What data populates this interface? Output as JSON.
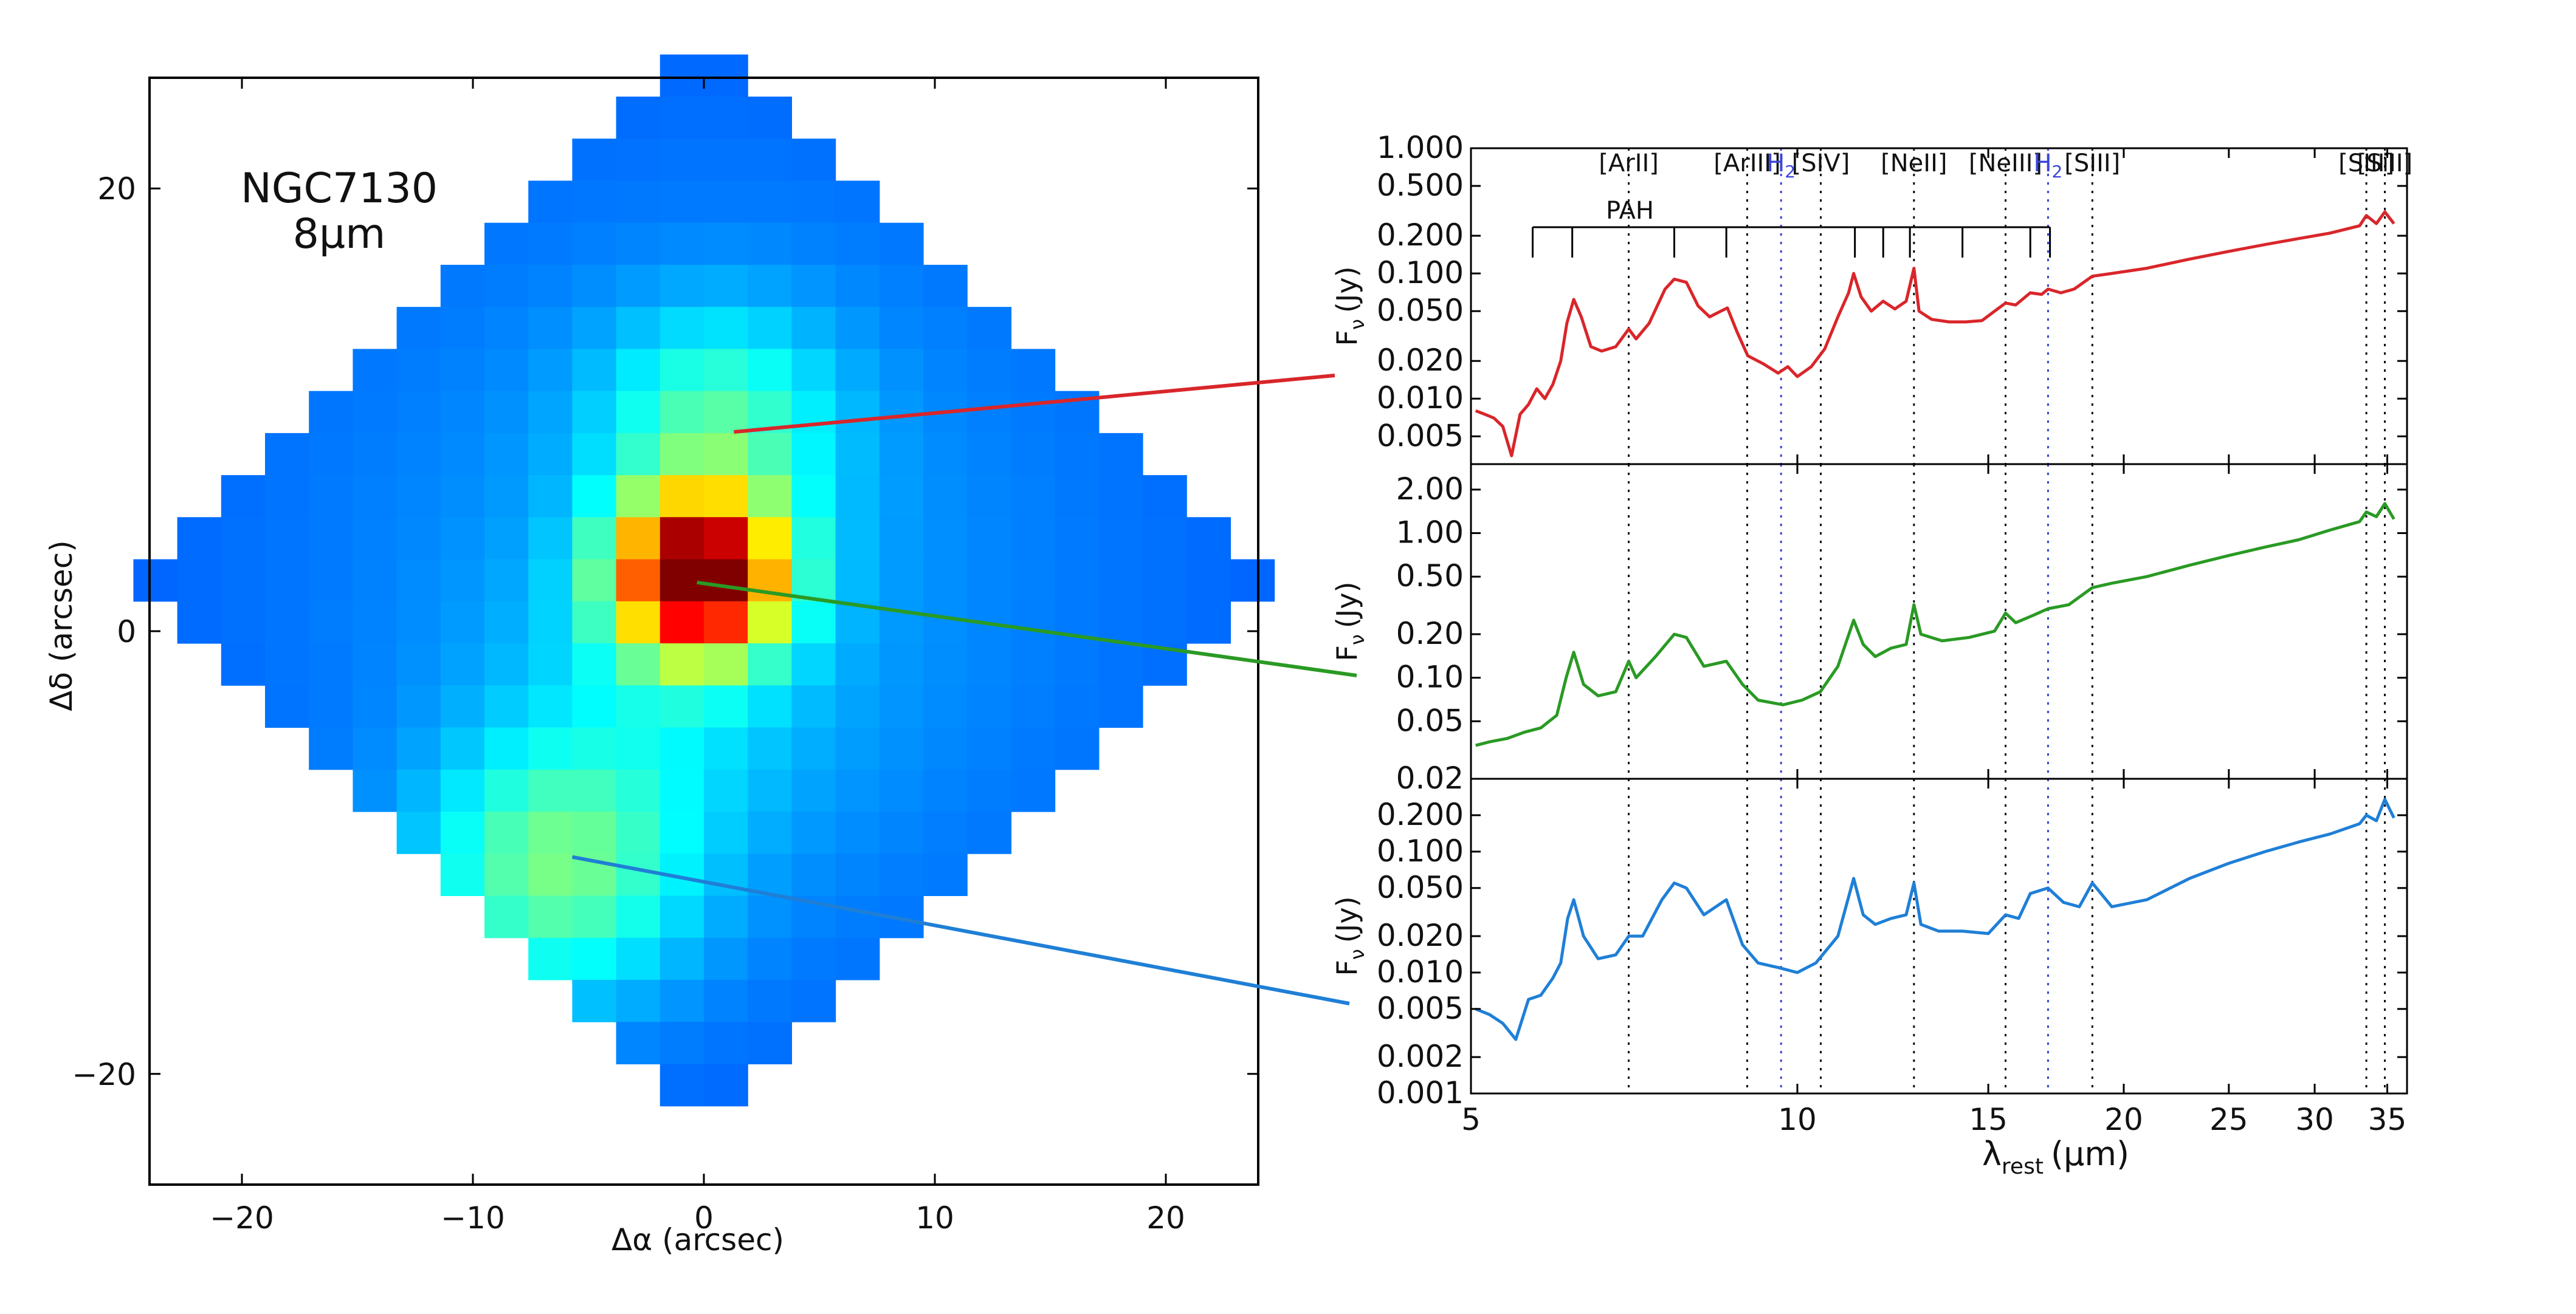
{
  "chart_data": [
    {
      "type": "heatmap",
      "title_lines": [
        "NGC7130",
        "8µm"
      ],
      "xlabel": "Δα (arcsec)",
      "ylabel": "Δδ (arcsec)",
      "xlim": [
        -24,
        24
      ],
      "ylim": [
        -25,
        25
      ],
      "x_ticks": [
        -20,
        -10,
        0,
        10,
        20
      ],
      "y_ticks": [
        20,
        0,
        -20
      ],
      "x_tick_labels": [
        "−20",
        "−10",
        "0",
        "10",
        "20"
      ],
      "y_tick_labels": [
        "20",
        "0",
        "−20"
      ],
      "pixel_size_arcsec": 1.9,
      "colormap": "jet",
      "grid_center": [
        0,
        2.3
      ],
      "diamond_half_widths": [
        1,
        2,
        3,
        4,
        5,
        6,
        7,
        8,
        9,
        10,
        11,
        12,
        13,
        12,
        11,
        10,
        9,
        8,
        7,
        6,
        5,
        4,
        3,
        2,
        1
      ],
      "emission": {
        "background": 0.05,
        "falloff": 0.028,
        "components": [
          {
            "x": -0.2,
            "y": 2.5,
            "amp": 0.95,
            "sigma": 2.5
          },
          {
            "x": 0.6,
            "y": 9.5,
            "amp": 0.22,
            "sigma": 3.5
          },
          {
            "x": -6.5,
            "y": -11.0,
            "amp": 0.28,
            "sigma": 4.0
          },
          {
            "x": -2.0,
            "y": -3.5,
            "amp": 0.08,
            "sigma": 5.0
          }
        ]
      },
      "markers": [
        {
          "name": "north",
          "color": "#d9262a",
          "from": [
            1.3,
            9.0
          ]
        },
        {
          "name": "nucleus",
          "color": "#2a9a24",
          "from": [
            -0.3,
            2.2
          ]
        },
        {
          "name": "south",
          "color": "#1f7fd6",
          "from": [
            -5.7,
            -10.2
          ]
        }
      ]
    },
    {
      "type": "line",
      "x_scale": "log",
      "xlim": [
        5,
        36.5
      ],
      "xlabel": "λ",
      "xlabel_sub": "rest",
      "xlabel_unit": "(µm)",
      "x_ticks": [
        5,
        10,
        15,
        20,
        25,
        30,
        35
      ],
      "ylabel": "F",
      "ylabel_sub": "ν",
      "ylabel_unit": "(Jy)",
      "pah_label": "PAH",
      "pah_bands": [
        5.7,
        6.2,
        7.7,
        8.6,
        11.3,
        12.0,
        12.7,
        14.2,
        16.4,
        17.1
      ],
      "lines": [
        {
          "label": "[ArII]",
          "wl": 6.99,
          "color": "#111111"
        },
        {
          "label": "[ArIII]",
          "wl": 8.99,
          "color": "#111111"
        },
        {
          "label": "H",
          "sub": "2",
          "wl": 9.66,
          "color": "#3b46d8"
        },
        {
          "label": "[SIV]",
          "wl": 10.51,
          "color": "#111111"
        },
        {
          "label": "[NeII]",
          "wl": 12.81,
          "color": "#111111"
        },
        {
          "label": "[NeIII]",
          "wl": 15.56,
          "color": "#111111"
        },
        {
          "label": "H",
          "sub": "2",
          "wl": 17.03,
          "color": "#3b46d8"
        },
        {
          "label": "[SIII]",
          "wl": 18.71,
          "color": "#111111"
        },
        {
          "label": "[SIII]",
          "wl": 33.48,
          "color": "#111111"
        },
        {
          "label": "[SiII]",
          "wl": 34.82,
          "color": "#111111"
        }
      ],
      "panels": [
        {
          "name": "top",
          "color": "#d9262a",
          "ylim": [
            0.003,
            1.0
          ],
          "y_ticks": [
            0.005,
            0.01,
            0.02,
            0.05,
            0.1,
            0.2,
            0.5,
            1.0
          ],
          "y_tick_labels": [
            "0.005",
            "0.010",
            "0.020",
            "0.050",
            "0.100",
            "0.200",
            "0.500",
            "1.000"
          ],
          "spectrum": [
            [
              5.05,
              0.008
            ],
            [
              5.15,
              0.0075
            ],
            [
              5.25,
              0.007
            ],
            [
              5.35,
              0.006
            ],
            [
              5.45,
              0.0035
            ],
            [
              5.55,
              0.0075
            ],
            [
              5.65,
              0.009
            ],
            [
              5.75,
              0.012
            ],
            [
              5.85,
              0.01
            ],
            [
              5.95,
              0.013
            ],
            [
              6.05,
              0.02
            ],
            [
              6.13,
              0.04
            ],
            [
              6.22,
              0.062
            ],
            [
              6.32,
              0.045
            ],
            [
              6.45,
              0.026
            ],
            [
              6.6,
              0.024
            ],
            [
              6.8,
              0.026
            ],
            [
              6.99,
              0.036
            ],
            [
              7.1,
              0.03
            ],
            [
              7.3,
              0.04
            ],
            [
              7.55,
              0.075
            ],
            [
              7.7,
              0.09
            ],
            [
              7.9,
              0.085
            ],
            [
              8.1,
              0.055
            ],
            [
              8.3,
              0.045
            ],
            [
              8.5,
              0.05
            ],
            [
              8.62,
              0.053
            ],
            [
              8.8,
              0.034
            ],
            [
              9.0,
              0.022
            ],
            [
              9.3,
              0.019
            ],
            [
              9.6,
              0.016
            ],
            [
              9.8,
              0.018
            ],
            [
              10.0,
              0.015
            ],
            [
              10.3,
              0.018
            ],
            [
              10.6,
              0.025
            ],
            [
              10.9,
              0.045
            ],
            [
              11.15,
              0.07
            ],
            [
              11.27,
              0.1
            ],
            [
              11.45,
              0.065
            ],
            [
              11.7,
              0.05
            ],
            [
              12.0,
              0.06
            ],
            [
              12.3,
              0.052
            ],
            [
              12.6,
              0.06
            ],
            [
              12.81,
              0.11
            ],
            [
              12.95,
              0.05
            ],
            [
              13.3,
              0.043
            ],
            [
              13.8,
              0.041
            ],
            [
              14.3,
              0.041
            ],
            [
              14.8,
              0.042
            ],
            [
              15.2,
              0.05
            ],
            [
              15.56,
              0.058
            ],
            [
              15.9,
              0.056
            ],
            [
              16.4,
              0.07
            ],
            [
              16.8,
              0.068
            ],
            [
              17.03,
              0.075
            ],
            [
              17.5,
              0.07
            ],
            [
              18.0,
              0.075
            ],
            [
              18.71,
              0.095
            ],
            [
              19.5,
              0.1
            ],
            [
              21.0,
              0.11
            ],
            [
              23.0,
              0.13
            ],
            [
              25.0,
              0.15
            ],
            [
              27.0,
              0.17
            ],
            [
              29.0,
              0.19
            ],
            [
              31.0,
              0.21
            ],
            [
              33.0,
              0.24
            ],
            [
              33.48,
              0.29
            ],
            [
              34.2,
              0.25
            ],
            [
              34.82,
              0.31
            ],
            [
              35.5,
              0.25
            ]
          ]
        },
        {
          "name": "middle",
          "color": "#2a9a24",
          "ylim": [
            0.02,
            3.0
          ],
          "y_ticks": [
            0.02,
            0.05,
            0.1,
            0.2,
            0.5,
            1.0,
            2.0
          ],
          "y_tick_labels": [
            "0.02",
            "0.05",
            "0.10",
            "0.20",
            "0.50",
            "1.00",
            "2.00"
          ],
          "spectrum": [
            [
              5.05,
              0.034
            ],
            [
              5.2,
              0.036
            ],
            [
              5.4,
              0.038
            ],
            [
              5.6,
              0.042
            ],
            [
              5.8,
              0.045
            ],
            [
              6.0,
              0.055
            ],
            [
              6.12,
              0.1
            ],
            [
              6.22,
              0.15
            ],
            [
              6.35,
              0.09
            ],
            [
              6.55,
              0.075
            ],
            [
              6.8,
              0.08
            ],
            [
              6.99,
              0.13
            ],
            [
              7.1,
              0.1
            ],
            [
              7.4,
              0.14
            ],
            [
              7.7,
              0.2
            ],
            [
              7.9,
              0.19
            ],
            [
              8.2,
              0.12
            ],
            [
              8.6,
              0.13
            ],
            [
              8.9,
              0.09
            ],
            [
              9.2,
              0.07
            ],
            [
              9.7,
              0.065
            ],
            [
              10.1,
              0.07
            ],
            [
              10.5,
              0.08
            ],
            [
              10.9,
              0.12
            ],
            [
              11.27,
              0.25
            ],
            [
              11.5,
              0.17
            ],
            [
              11.8,
              0.14
            ],
            [
              12.2,
              0.16
            ],
            [
              12.6,
              0.17
            ],
            [
              12.81,
              0.32
            ],
            [
              13.0,
              0.2
            ],
            [
              13.6,
              0.18
            ],
            [
              14.4,
              0.19
            ],
            [
              15.2,
              0.21
            ],
            [
              15.56,
              0.28
            ],
            [
              15.9,
              0.24
            ],
            [
              16.5,
              0.27
            ],
            [
              17.03,
              0.3
            ],
            [
              17.8,
              0.32
            ],
            [
              18.71,
              0.42
            ],
            [
              19.5,
              0.45
            ],
            [
              21.0,
              0.5
            ],
            [
              23.0,
              0.6
            ],
            [
              25.0,
              0.7
            ],
            [
              27.0,
              0.8
            ],
            [
              29.0,
              0.9
            ],
            [
              31.0,
              1.05
            ],
            [
              33.0,
              1.2
            ],
            [
              33.48,
              1.4
            ],
            [
              34.2,
              1.3
            ],
            [
              34.82,
              1.6
            ],
            [
              35.5,
              1.25
            ]
          ]
        },
        {
          "name": "bottom",
          "color": "#1f7fd6",
          "ylim": [
            0.001,
            0.4
          ],
          "y_ticks": [
            0.001,
            0.002,
            0.005,
            0.01,
            0.02,
            0.05,
            0.1,
            0.2
          ],
          "y_tick_labels": [
            "0.001",
            "0.002",
            "0.005",
            "0.010",
            "0.020",
            "0.050",
            "0.100",
            "0.200"
          ],
          "spectrum": [
            [
              5.05,
              0.005
            ],
            [
              5.2,
              0.0045
            ],
            [
              5.35,
              0.0038
            ],
            [
              5.5,
              0.0028
            ],
            [
              5.65,
              0.006
            ],
            [
              5.8,
              0.0065
            ],
            [
              5.95,
              0.009
            ],
            [
              6.05,
              0.012
            ],
            [
              6.14,
              0.028
            ],
            [
              6.22,
              0.04
            ],
            [
              6.35,
              0.02
            ],
            [
              6.55,
              0.013
            ],
            [
              6.8,
              0.014
            ],
            [
              6.99,
              0.02
            ],
            [
              7.2,
              0.02
            ],
            [
              7.5,
              0.04
            ],
            [
              7.7,
              0.055
            ],
            [
              7.9,
              0.05
            ],
            [
              8.2,
              0.03
            ],
            [
              8.6,
              0.04
            ],
            [
              8.9,
              0.017
            ],
            [
              9.2,
              0.012
            ],
            [
              9.6,
              0.011
            ],
            [
              10.0,
              0.01
            ],
            [
              10.4,
              0.012
            ],
            [
              10.9,
              0.02
            ],
            [
              11.27,
              0.06
            ],
            [
              11.5,
              0.03
            ],
            [
              11.8,
              0.025
            ],
            [
              12.2,
              0.028
            ],
            [
              12.6,
              0.03
            ],
            [
              12.81,
              0.055
            ],
            [
              13.0,
              0.025
            ],
            [
              13.5,
              0.022
            ],
            [
              14.2,
              0.022
            ],
            [
              15.0,
              0.021
            ],
            [
              15.56,
              0.03
            ],
            [
              16.0,
              0.028
            ],
            [
              16.4,
              0.045
            ],
            [
              17.03,
              0.05
            ],
            [
              17.6,
              0.038
            ],
            [
              18.2,
              0.035
            ],
            [
              18.71,
              0.055
            ],
            [
              19.5,
              0.035
            ],
            [
              21.0,
              0.04
            ],
            [
              23.0,
              0.06
            ],
            [
              25.0,
              0.08
            ],
            [
              27.0,
              0.1
            ],
            [
              29.0,
              0.12
            ],
            [
              31.0,
              0.14
            ],
            [
              33.0,
              0.17
            ],
            [
              33.48,
              0.2
            ],
            [
              34.2,
              0.18
            ],
            [
              34.82,
              0.27
            ],
            [
              35.5,
              0.19
            ]
          ]
        }
      ]
    }
  ]
}
